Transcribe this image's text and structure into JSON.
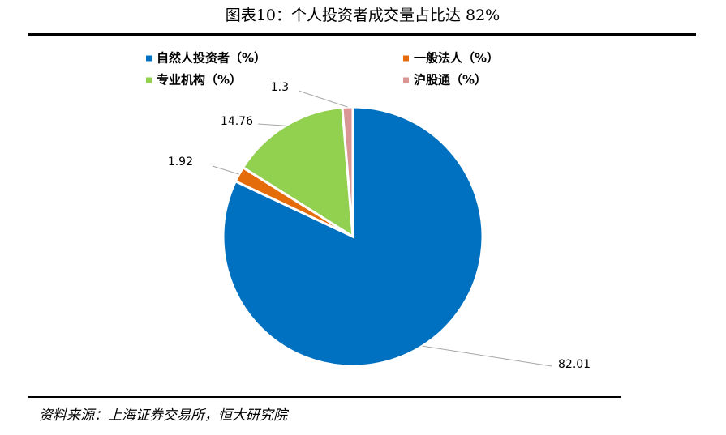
{
  "chart_data": {
    "type": "pie",
    "title": "图表10：个人投资者成交量占比达 82%",
    "categories": [
      "自然人投资者（%）",
      "一般法人（%）",
      "专业机构（%）",
      "沪股通（%）"
    ],
    "values": [
      82.01,
      1.92,
      14.76,
      1.3
    ],
    "colors": [
      "#0070c0",
      "#e46c0a",
      "#92d050",
      "#d99694"
    ],
    "source": "资料来源：上海证券交易所，恒大研究院"
  }
}
